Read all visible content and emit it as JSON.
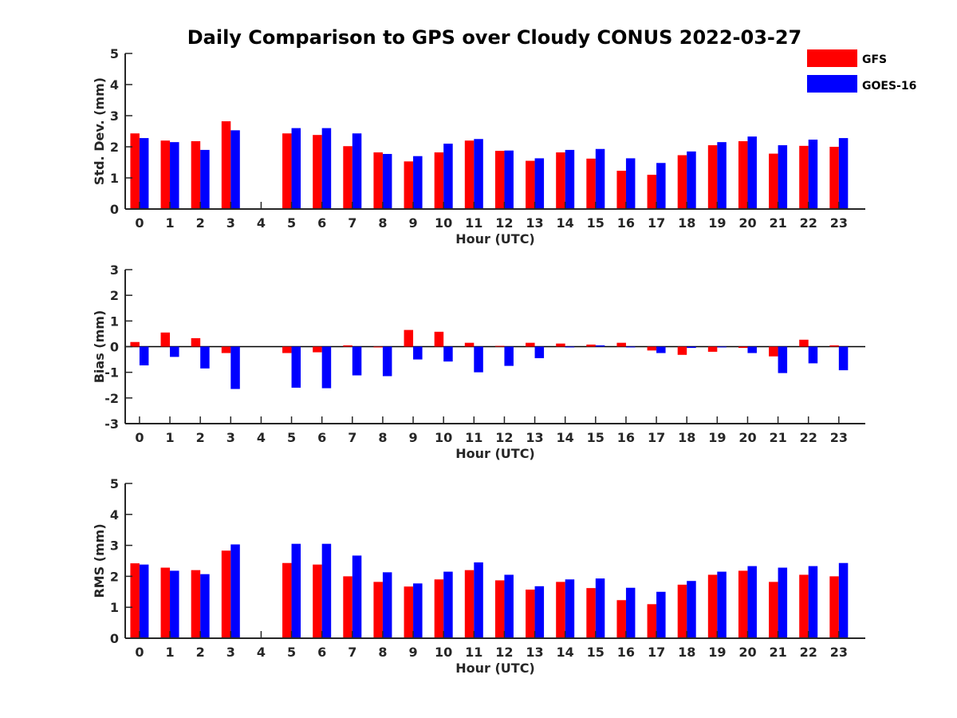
{
  "chart_data": {
    "type": "bar",
    "title": "Daily Comparison to GPS over Cloudy CONUS 2022-03-27",
    "legend_position": "top-right",
    "colors": {
      "GFS": "#ff0000",
      "GOES-16": "#0000ff"
    },
    "legend": [
      "GFS",
      "GOES-16"
    ],
    "panels": [
      {
        "ylabel": "Std. Dev. (mm)",
        "xlabel": "Hour (UTC)",
        "ylim": [
          0,
          5
        ],
        "yticks": [
          "0",
          "1",
          "2",
          "3",
          "4",
          "5"
        ],
        "categories": [
          "0",
          "1",
          "2",
          "3",
          "4",
          "5",
          "6",
          "7",
          "8",
          "9",
          "10",
          "11",
          "12",
          "13",
          "14",
          "15",
          "16",
          "17",
          "18",
          "19",
          "20",
          "21",
          "22",
          "23"
        ],
        "series": [
          {
            "name": "GFS",
            "values": [
              2.43,
              2.2,
              2.18,
              2.82,
              null,
              2.43,
              2.38,
              2.02,
              1.82,
              1.53,
              1.82,
              2.2,
              1.87,
              1.55,
              1.82,
              1.62,
              1.23,
              1.1,
              1.73,
              2.05,
              2.18,
              1.78,
              2.03,
              2.0
            ]
          },
          {
            "name": "GOES-16",
            "values": [
              2.28,
              2.15,
              1.9,
              2.53,
              null,
              2.6,
              2.6,
              2.43,
              1.77,
              1.7,
              2.1,
              2.25,
              1.88,
              1.63,
              1.9,
              1.93,
              1.63,
              1.48,
              1.85,
              2.15,
              2.33,
              2.05,
              2.23,
              2.28
            ]
          }
        ]
      },
      {
        "ylabel": "Bias (mm)",
        "xlabel": "Hour (UTC)",
        "ylim": [
          -3,
          3
        ],
        "yticks": [
          "-3",
          "-2",
          "-1",
          "0",
          "1",
          "2",
          "3"
        ],
        "categories": [
          "0",
          "1",
          "2",
          "3",
          "4",
          "5",
          "6",
          "7",
          "8",
          "9",
          "10",
          "11",
          "12",
          "13",
          "14",
          "15",
          "16",
          "17",
          "18",
          "19",
          "20",
          "21",
          "22",
          "23"
        ],
        "series": [
          {
            "name": "GFS",
            "values": [
              0.18,
              0.55,
              0.33,
              -0.25,
              null,
              -0.25,
              -0.22,
              0.05,
              -0.03,
              0.65,
              0.58,
              0.15,
              0.03,
              0.15,
              0.12,
              0.08,
              0.15,
              -0.15,
              -0.32,
              -0.2,
              -0.05,
              -0.38,
              0.27,
              0.05
            ]
          },
          {
            "name": "GOES-16",
            "values": [
              -0.73,
              -0.4,
              -0.85,
              -1.65,
              null,
              -1.6,
              -1.62,
              -1.12,
              -1.15,
              -0.5,
              -0.58,
              -1.0,
              -0.75,
              -0.45,
              -0.03,
              0.05,
              -0.03,
              -0.25,
              -0.05,
              -0.03,
              -0.25,
              -1.03,
              -0.65,
              -0.92
            ]
          }
        ]
      },
      {
        "ylabel": "RMS (mm)",
        "xlabel": "Hour (UTC)",
        "ylim": [
          0,
          5
        ],
        "yticks": [
          "0",
          "1",
          "2",
          "3",
          "4",
          "5"
        ],
        "categories": [
          "0",
          "1",
          "2",
          "3",
          "4",
          "5",
          "6",
          "7",
          "8",
          "9",
          "10",
          "11",
          "12",
          "13",
          "14",
          "15",
          "16",
          "17",
          "18",
          "19",
          "20",
          "21",
          "22",
          "23"
        ],
        "series": [
          {
            "name": "GFS",
            "values": [
              2.42,
              2.28,
              2.2,
              2.83,
              null,
              2.43,
              2.38,
              2.0,
              1.82,
              1.67,
              1.9,
              2.2,
              1.87,
              1.57,
              1.82,
              1.62,
              1.23,
              1.1,
              1.73,
              2.05,
              2.18,
              1.82,
              2.05,
              2.0
            ]
          },
          {
            "name": "GOES-16",
            "values": [
              2.38,
              2.18,
              2.07,
              3.03,
              null,
              3.05,
              3.05,
              2.67,
              2.13,
              1.77,
              2.15,
              2.45,
              2.05,
              1.68,
              1.9,
              1.93,
              1.63,
              1.5,
              1.85,
              2.15,
              2.33,
              2.28,
              2.33,
              2.43
            ]
          }
        ]
      }
    ]
  }
}
